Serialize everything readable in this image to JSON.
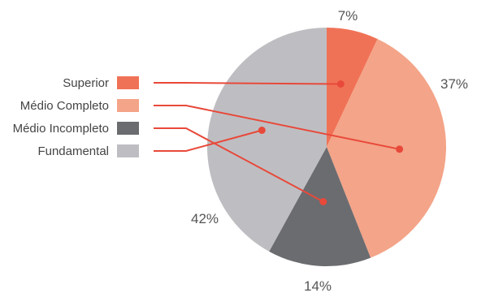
{
  "chart_data": {
    "type": "pie",
    "slices": [
      {
        "label": "Superior",
        "value": 7,
        "value_label": "7%",
        "color": "#f07256"
      },
      {
        "label": "Médio Completo",
        "value": 37,
        "value_label": "37%",
        "color": "#f4a488"
      },
      {
        "label": "Médio Incompleto",
        "value": 14,
        "value_label": "14%",
        "color": "#6b6c70"
      },
      {
        "label": "Fundamental",
        "value": 42,
        "value_label": "42%",
        "color": "#bebec2"
      }
    ],
    "start": "12 o'clock",
    "direction": "clockwise",
    "legend_position": "left",
    "leader_color": "#e8493a"
  }
}
